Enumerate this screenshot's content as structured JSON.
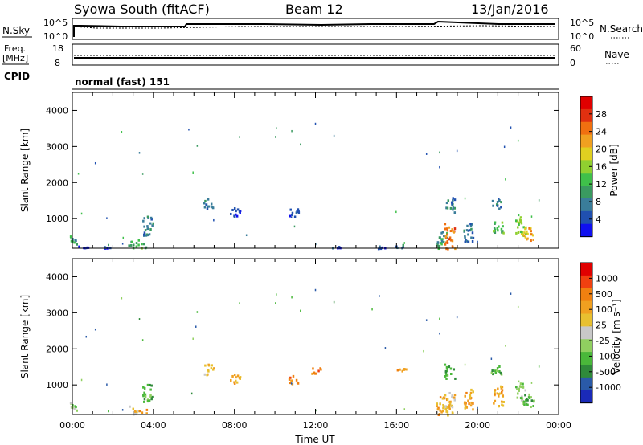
{
  "header": {
    "title": "Syowa South (fitACF)",
    "beam": "Beam 12",
    "date": "13/Jan/2016"
  },
  "top_panels": {
    "nsky": {
      "label": "N.Sky",
      "tick_hi": "10^5",
      "tick_lo": "10^0",
      "right_label": "N.Search",
      "right_tick_hi": "10^5",
      "right_tick_lo": "10^0"
    },
    "freq": {
      "label_1": "Freq.",
      "label_2": "[MHz]",
      "tick_hi": "18",
      "tick_lo": "8",
      "right_label": "Nave",
      "right_tick_hi": "60",
      "right_tick_lo": "0"
    },
    "cpid": {
      "label": "CPID",
      "value": "normal (fast) 151"
    }
  },
  "chart_data": [
    {
      "type": "heatmap",
      "name": "Power",
      "xlabel": "Time UT",
      "ylabel": "Slant Range [km]",
      "xlim_hours": [
        0,
        24
      ],
      "ylim": [
        180,
        4500
      ],
      "y_ticks": [
        1000,
        2000,
        3000,
        4000
      ],
      "y_tick_labels": [
        "1000",
        "2000",
        "3000",
        "4000"
      ],
      "colorbar": {
        "label": "Power [dB]",
        "ticks": [
          "4",
          "8",
          "12",
          "16",
          "20",
          "24",
          "28"
        ],
        "bands": [
          "#1010f0",
          "#2050b0",
          "#3a7d9a",
          "#3a9a60",
          "#3fc04a",
          "#90d030",
          "#e0d020",
          "#f0a020",
          "#f07010",
          "#e03010",
          "#e00000"
        ]
      },
      "echo_clusters": [
        {
          "t": 0.1,
          "r0": 300,
          "r1": 550,
          "c": 3
        },
        {
          "t": 0.5,
          "r0": 200,
          "r1": 260,
          "c": 1
        },
        {
          "t": 1.6,
          "r0": 200,
          "r1": 260,
          "c": 1
        },
        {
          "t": 3.0,
          "r0": 190,
          "r1": 450,
          "c": 3
        },
        {
          "t": 3.4,
          "r0": 190,
          "r1": 350,
          "c": 4
        },
        {
          "t": 3.7,
          "r0": 550,
          "r1": 1100,
          "c": 2
        },
        {
          "t": 8.0,
          "r0": 1050,
          "r1": 1350,
          "c": 1
        },
        {
          "t": 6.7,
          "r0": 1300,
          "r1": 1600,
          "c": 2
        },
        {
          "t": 10.9,
          "r0": 1050,
          "r1": 1300,
          "c": 1
        },
        {
          "t": 13.0,
          "r0": 190,
          "r1": 250,
          "c": 1
        },
        {
          "t": 15.2,
          "r0": 190,
          "r1": 260,
          "c": 1
        },
        {
          "t": 16.2,
          "r0": 190,
          "r1": 300,
          "c": 2
        },
        {
          "t": 18.2,
          "r0": 200,
          "r1": 700,
          "c": 3
        },
        {
          "t": 18.6,
          "r0": 190,
          "r1": 900,
          "c": 8
        },
        {
          "t": 18.6,
          "r0": 1200,
          "r1": 1600,
          "c": 2
        },
        {
          "t": 19.5,
          "r0": 350,
          "r1": 900,
          "c": 2
        },
        {
          "t": 21.0,
          "r0": 600,
          "r1": 1000,
          "c": 4
        },
        {
          "t": 20.9,
          "r0": 1300,
          "r1": 1600,
          "c": 2
        },
        {
          "t": 22.1,
          "r0": 500,
          "r1": 1100,
          "c": 5
        },
        {
          "t": 22.5,
          "r0": 400,
          "r1": 800,
          "c": 7
        }
      ]
    },
    {
      "type": "heatmap",
      "name": "Velocity",
      "xlabel": "Time UT",
      "ylabel": "Slant Range [km]",
      "xlim_hours": [
        0,
        24
      ],
      "ylim": [
        180,
        4500
      ],
      "y_ticks": [
        1000,
        2000,
        3000,
        4000
      ],
      "y_tick_labels": [
        "1000",
        "2000",
        "3000",
        "4000"
      ],
      "x_tick_labels": [
        "00:00",
        "04:00",
        "08:00",
        "12:00",
        "16:00",
        "20:00",
        "00:00"
      ],
      "colorbar": {
        "label": "Velocity [m s⁻¹]",
        "ticks": [
          "1000",
          "500",
          "100",
          "25",
          "-25",
          "-100",
          "-500",
          "-1000"
        ],
        "bands": [
          "#1a2ab8",
          "#2a5aa8",
          "#2f8a3a",
          "#4ab83a",
          "#90d060",
          "#c8c8c8",
          "#e8c030",
          "#f0a020",
          "#f08010",
          "#f04010",
          "#e00000"
        ]
      },
      "echo_clusters": [
        {
          "t": 0.1,
          "r0": 300,
          "r1": 550,
          "c": 4
        },
        {
          "t": 3.0,
          "r0": 190,
          "r1": 450,
          "c": 6
        },
        {
          "t": 3.4,
          "r0": 190,
          "r1": 350,
          "c": 7
        },
        {
          "t": 3.7,
          "r0": 550,
          "r1": 1100,
          "c": 3
        },
        {
          "t": 6.7,
          "r0": 1300,
          "r1": 1600,
          "c": 6
        },
        {
          "t": 8.0,
          "r0": 1050,
          "r1": 1350,
          "c": 7
        },
        {
          "t": 10.9,
          "r0": 1050,
          "r1": 1300,
          "c": 8
        },
        {
          "t": 12.0,
          "r0": 1300,
          "r1": 1500,
          "c": 8
        },
        {
          "t": 16.2,
          "r0": 1400,
          "r1": 1500,
          "c": 7
        },
        {
          "t": 18.2,
          "r0": 200,
          "r1": 700,
          "c": 7
        },
        {
          "t": 18.6,
          "r0": 190,
          "r1": 900,
          "c": 6
        },
        {
          "t": 18.6,
          "r0": 1200,
          "r1": 1600,
          "c": 3
        },
        {
          "t": 19.5,
          "r0": 350,
          "r1": 900,
          "c": 7
        },
        {
          "t": 21.0,
          "r0": 400,
          "r1": 1000,
          "c": 7
        },
        {
          "t": 20.9,
          "r0": 1300,
          "r1": 1600,
          "c": 3
        },
        {
          "t": 22.1,
          "r0": 500,
          "r1": 1100,
          "c": 4
        },
        {
          "t": 22.5,
          "r0": 400,
          "r1": 800,
          "c": 3
        }
      ]
    }
  ]
}
